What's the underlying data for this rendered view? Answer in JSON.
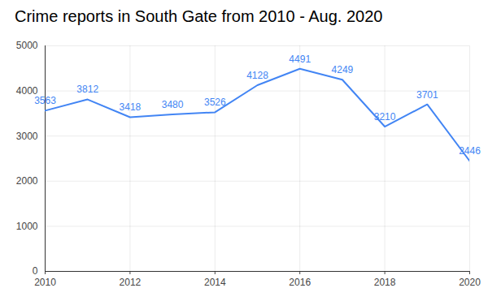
{
  "chart_data": {
    "type": "line",
    "title": "Crime reports in South Gate from 2010 - Aug. 2020",
    "x": [
      2010,
      2011,
      2012,
      2013,
      2014,
      2015,
      2016,
      2017,
      2018,
      2019,
      2020
    ],
    "values": [
      3563,
      3812,
      3418,
      3480,
      3526,
      4128,
      4491,
      4249,
      3210,
      3701,
      2446
    ],
    "color": "#4285f4",
    "xlim": [
      2010,
      2020
    ],
    "xticks": [
      2010,
      2012,
      2014,
      2016,
      2018,
      2020
    ],
    "ylim": [
      0,
      5000
    ],
    "yticks": [
      0,
      1000,
      2000,
      3000,
      4000,
      5000
    ],
    "grid": true,
    "data_labels": true,
    "marker": "none"
  }
}
